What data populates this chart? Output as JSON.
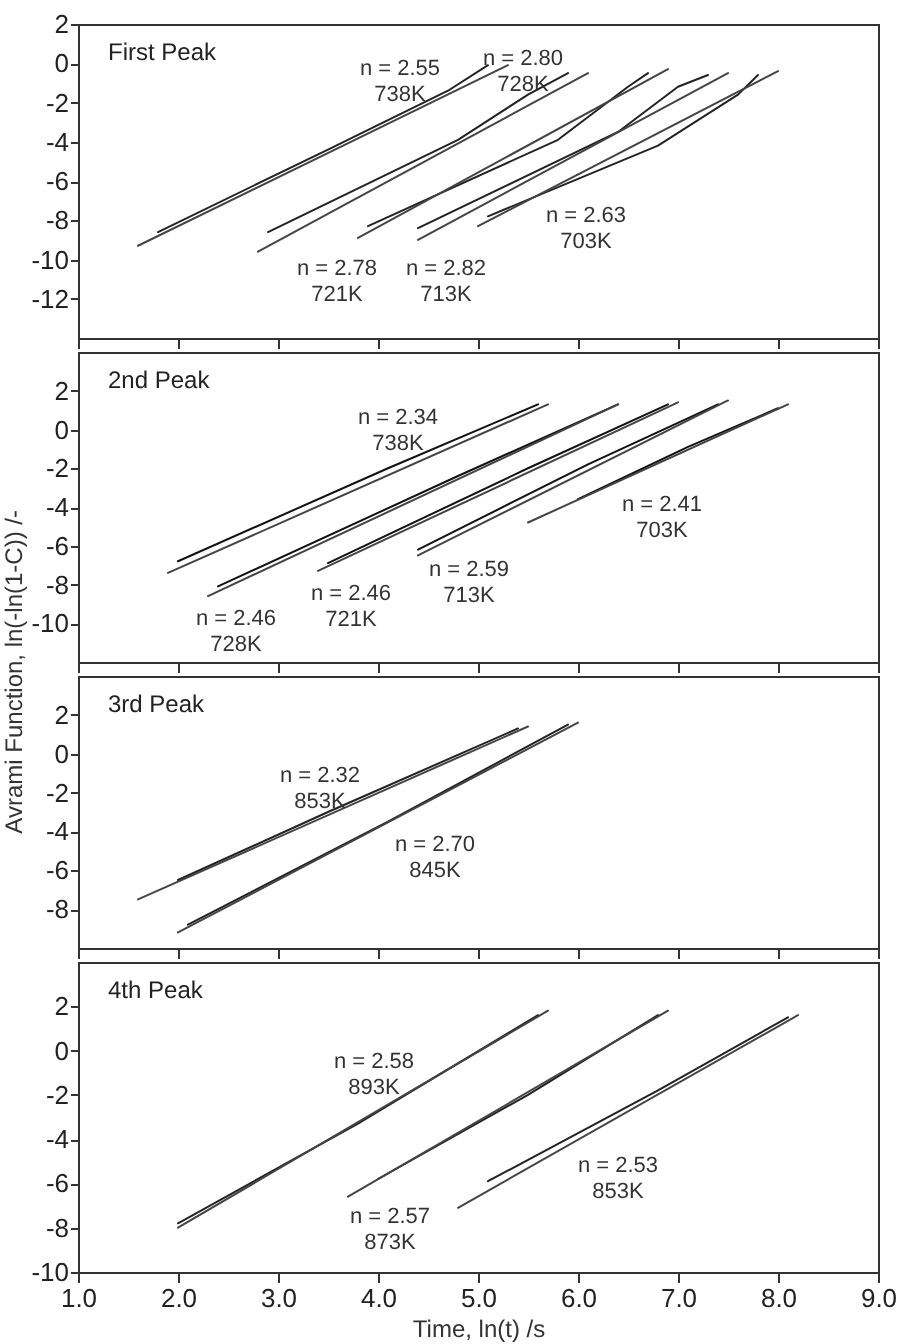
{
  "chart_data": [
    {
      "type": "line",
      "title": "First Peak",
      "xlim": [
        1,
        9
      ],
      "xticks": [
        {
          "value": 1,
          "label": null
        },
        {
          "value": 2,
          "label": null
        },
        {
          "value": 3,
          "label": null
        },
        {
          "value": 4,
          "label": null
        },
        {
          "value": 5,
          "label": null
        },
        {
          "value": 6,
          "label": null
        },
        {
          "value": 7,
          "label": null
        },
        {
          "value": 8,
          "label": null
        },
        {
          "value": 9,
          "label": null
        }
      ],
      "ylim": [
        -14,
        2
      ],
      "yticks": [
        2,
        0,
        -2,
        -4,
        -6,
        -8,
        -10,
        -12
      ],
      "tick_labels": "y",
      "series": [
        {
          "color": "#222222",
          "x": [
            1.8,
            3.5,
            4.7,
            5.1
          ],
          "values": [
            -8.6,
            -4.4,
            -1.4,
            -0.1
          ]
        },
        {
          "color": "#444444",
          "x": [
            1.6,
            5.3
          ],
          "values": [
            -9.3,
            -0.1
          ]
        },
        {
          "color": "#222222",
          "x": [
            2.9,
            4.8,
            5.5,
            5.9
          ],
          "values": [
            -8.6,
            -3.9,
            -1.6,
            -0.5
          ]
        },
        {
          "color": "#444444",
          "x": [
            2.8,
            6.1
          ],
          "values": [
            -9.6,
            -0.5
          ]
        },
        {
          "color": "#222222",
          "x": [
            3.9,
            5.8,
            6.5,
            6.7
          ],
          "values": [
            -8.3,
            -3.9,
            -1.2,
            -0.5
          ]
        },
        {
          "color": "#444444",
          "x": [
            3.8,
            6.9
          ],
          "values": [
            -8.9,
            -0.3
          ]
        },
        {
          "color": "#222222",
          "x": [
            4.4,
            6.4,
            7.0,
            7.3
          ],
          "values": [
            -8.4,
            -3.5,
            -1.2,
            -0.6
          ]
        },
        {
          "color": "#444444",
          "x": [
            4.4,
            7.5
          ],
          "values": [
            -9.0,
            -0.5
          ]
        },
        {
          "color": "#222222",
          "x": [
            5.1,
            6.8,
            7.6,
            7.8
          ],
          "values": [
            -7.8,
            -4.2,
            -1.6,
            -0.6
          ]
        },
        {
          "color": "#444444",
          "x": [
            5.0,
            8.0
          ],
          "values": [
            -8.3,
            -0.4
          ]
        }
      ],
      "annotations": [
        "n = 2.55\n738K",
        "n = 2.80\n728K",
        "n = 2.78\n721K",
        "n = 2.82\n713K",
        "n = 2.63\n703K"
      ]
    },
    {
      "type": "line",
      "title": "2nd Peak",
      "ylabel": "Avrami Function, ln(-ln(1-C)) /-",
      "xlim": [
        1,
        9
      ],
      "xticks": [
        {
          "value": 1,
          "label": null
        },
        {
          "value": 2,
          "label": null
        },
        {
          "value": 3,
          "label": null
        },
        {
          "value": 4,
          "label": null
        },
        {
          "value": 5,
          "label": null
        },
        {
          "value": 6,
          "label": null
        },
        {
          "value": 7,
          "label": null
        },
        {
          "value": 8,
          "label": null
        },
        {
          "value": 9,
          "label": null
        }
      ],
      "ylim": [
        -12,
        4
      ],
      "yticks": [
        2,
        0,
        -2,
        -4,
        -6,
        -8,
        -10
      ],
      "tick_labels": "y",
      "series": [
        {
          "color": "#111111",
          "x": [
            2.0,
            4.1,
            5.6
          ],
          "values": [
            -6.8,
            -2.0,
            1.3
          ]
        },
        {
          "color": "#444444",
          "x": [
            1.9,
            5.7
          ],
          "values": [
            -7.4,
            1.3
          ]
        },
        {
          "color": "#111111",
          "x": [
            2.4,
            4.8,
            6.4
          ],
          "values": [
            -8.1,
            -2.4,
            1.3
          ]
        },
        {
          "color": "#444444",
          "x": [
            2.3,
            6.4
          ],
          "values": [
            -8.6,
            1.3
          ]
        },
        {
          "color": "#111111",
          "x": [
            3.5,
            5.5,
            6.9
          ],
          "values": [
            -6.9,
            -2.0,
            1.3
          ]
        },
        {
          "color": "#444444",
          "x": [
            3.4,
            7.0
          ],
          "values": [
            -7.3,
            1.4
          ]
        },
        {
          "color": "#111111",
          "x": [
            4.4,
            6.1,
            7.4
          ],
          "values": [
            -6.2,
            -1.8,
            1.3
          ]
        },
        {
          "color": "#444444",
          "x": [
            4.4,
            7.5
          ],
          "values": [
            -6.5,
            1.5
          ]
        },
        {
          "color": "#111111",
          "x": [
            6.0,
            7.1,
            8.0
          ],
          "values": [
            -3.6,
            -0.9,
            1.1
          ]
        },
        {
          "color": "#444444",
          "x": [
            5.5,
            8.1
          ],
          "values": [
            -4.8,
            1.3
          ]
        }
      ],
      "annotations": [
        "n = 2.34\n738K",
        "n = 2.41\n703K",
        "n = 2.59\n713K",
        "n = 2.46\n721K",
        "n = 2.46\n728K"
      ]
    },
    {
      "type": "line",
      "title": "3rd Peak",
      "xlim": [
        1,
        9
      ],
      "xticks": [
        {
          "value": 1,
          "label": null
        },
        {
          "value": 2,
          "label": null
        },
        {
          "value": 3,
          "label": null
        },
        {
          "value": 4,
          "label": null
        },
        {
          "value": 5,
          "label": null
        },
        {
          "value": 6,
          "label": null
        },
        {
          "value": 7,
          "label": null
        },
        {
          "value": 8,
          "label": null
        },
        {
          "value": 9,
          "label": null
        }
      ],
      "ylim": [
        -10,
        4
      ],
      "yticks": [
        2,
        0,
        -2,
        -4,
        -6,
        -8
      ],
      "tick_labels": "y",
      "series": [
        {
          "color": "#222222",
          "x": [
            2.0,
            3.5,
            5.4
          ],
          "values": [
            -6.5,
            -3.0,
            1.3
          ]
        },
        {
          "color": "#444444",
          "x": [
            1.6,
            5.5
          ],
          "values": [
            -7.5,
            1.4
          ]
        },
        {
          "color": "#222222",
          "x": [
            2.1,
            4.1,
            5.9
          ],
          "values": [
            -8.8,
            -3.5,
            1.5
          ]
        },
        {
          "color": "#444444",
          "x": [
            2.0,
            6.0
          ],
          "values": [
            -9.2,
            1.6
          ]
        }
      ],
      "annotations": [
        "n = 2.32\n853K",
        "n = 2.70\n845K"
      ]
    },
    {
      "type": "line",
      "title": "4th Peak",
      "xlabel": "Time, ln(t) /s",
      "xlim": [
        1,
        9
      ],
      "xticks": [
        {
          "value": 1,
          "label": "1.0"
        },
        {
          "value": 2,
          "label": "2.0"
        },
        {
          "value": 3,
          "label": "3.0"
        },
        {
          "value": 4,
          "label": "4.0"
        },
        {
          "value": 5,
          "label": "5.0"
        },
        {
          "value": 6,
          "label": "6.0"
        },
        {
          "value": 7,
          "label": "7.0"
        },
        {
          "value": 8,
          "label": "8.0"
        },
        {
          "value": 9,
          "label": "9.0"
        }
      ],
      "ylim": [
        -10,
        4
      ],
      "yticks": [
        2,
        0,
        -2,
        -4,
        -6,
        -8,
        -10
      ],
      "series": [
        {
          "color": "#222222",
          "x": [
            2.0,
            3.8,
            5.6
          ],
          "values": [
            -7.8,
            -3.3,
            1.6
          ]
        },
        {
          "color": "#444444",
          "x": [
            2.0,
            5.7
          ],
          "values": [
            -8.0,
            1.8
          ]
        },
        {
          "color": "#222222",
          "x": [
            4.0,
            5.5,
            6.8
          ],
          "values": [
            -5.8,
            -2.0,
            1.6
          ]
        },
        {
          "color": "#444444",
          "x": [
            3.7,
            6.9
          ],
          "values": [
            -6.6,
            1.8
          ]
        },
        {
          "color": "#222222",
          "x": [
            5.1,
            6.8,
            8.1
          ],
          "values": [
            -5.9,
            -1.8,
            1.5
          ]
        },
        {
          "color": "#444444",
          "x": [
            4.8,
            8.2
          ],
          "values": [
            -7.1,
            1.6
          ]
        }
      ],
      "annotations": [
        "n = 2.58\n893K",
        "n = 2.57\n873K",
        "n = 2.53\n853K"
      ]
    }
  ]
}
